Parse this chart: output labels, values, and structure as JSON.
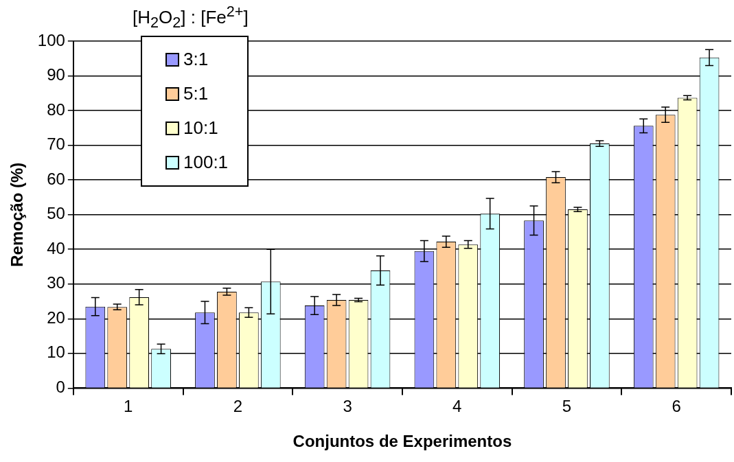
{
  "chart_data": {
    "type": "bar",
    "xlabel": "Conjuntos de Experimentos",
    "ylabel": "Remoção (%)",
    "legend_title": "[H$_{2}$O$_{2}$] : [Fe$^{2+}$]",
    "categories": [
      "1",
      "2",
      "3",
      "4",
      "5",
      "6"
    ],
    "series": [
      {
        "name": "3:1",
        "color": "#9999ff",
        "values": [
          23.5,
          21.8,
          23.8,
          39.5,
          48.3,
          75.6
        ],
        "errors": [
          2.6,
          3.2,
          2.6,
          3.0,
          4.2,
          2.0
        ]
      },
      {
        "name": "5:1",
        "color": "#ffcc99",
        "values": [
          23.4,
          27.8,
          25.4,
          42.2,
          60.8,
          78.8
        ],
        "errors": [
          0.8,
          1.0,
          1.6,
          1.6,
          1.6,
          2.2
        ]
      },
      {
        "name": "10:1",
        "color": "#ffffcc",
        "values": [
          26.2,
          21.8,
          25.4,
          41.4,
          51.5,
          83.7
        ],
        "errors": [
          2.2,
          1.4,
          0.5,
          1.1,
          0.6,
          0.6
        ]
      },
      {
        "name": "100:1",
        "color": "#ccffff",
        "values": [
          11.3,
          30.7,
          33.9,
          50.3,
          70.5,
          95.3
        ],
        "errors": [
          1.4,
          9.3,
          4.2,
          4.4,
          0.8,
          2.3
        ]
      }
    ],
    "ylim": [
      0,
      100
    ],
    "yticks": [
      0,
      10,
      20,
      30,
      40,
      50,
      60,
      70,
      80,
      90,
      100
    ],
    "grid": "y",
    "legend": "top left"
  }
}
